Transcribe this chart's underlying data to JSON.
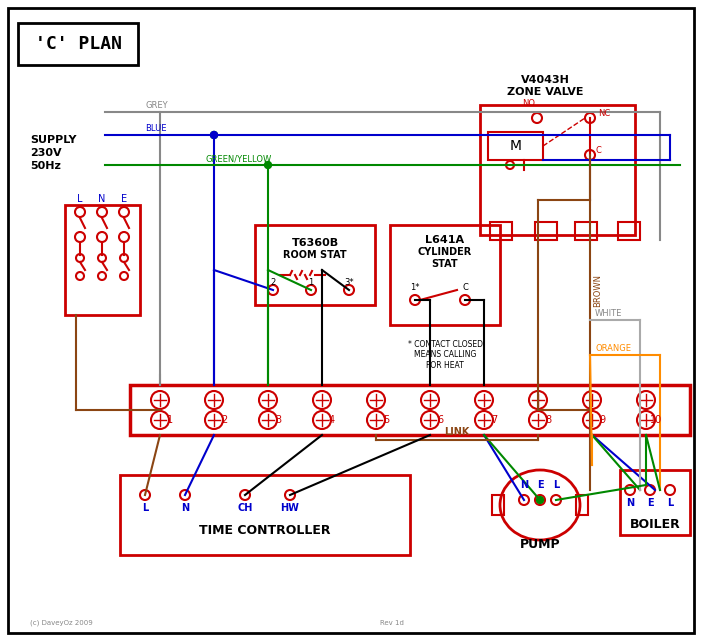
{
  "title": "'C' PLAN",
  "bg_color": "#ffffff",
  "border_color": "#000000",
  "red": "#cc0000",
  "blue": "#0000cc",
  "green": "#008800",
  "brown": "#8B4513",
  "grey": "#888888",
  "orange": "#FF8C00",
  "black": "#000000",
  "wire_labels": {
    "grey": "GREY",
    "blue": "BLUE",
    "green_yellow": "GREEN/YELLOW",
    "brown": "BROWN",
    "white": "WHITE",
    "orange": "ORANGE"
  },
  "terminal_numbers": [
    1,
    2,
    3,
    4,
    5,
    6,
    7,
    8,
    9,
    10
  ],
  "supply_text": [
    "SUPPLY",
    "230V",
    "50Hz"
  ],
  "supply_labels": [
    "L",
    "N",
    "E"
  ],
  "room_stat_title": "T6360B",
  "room_stat_sub": "ROOM STAT",
  "cyl_stat_title": "L641A",
  "cyl_stat_sub1": "CYLINDER",
  "cyl_stat_sub2": "STAT",
  "zone_valve_title": "V4043H",
  "zone_valve_sub": "ZONE VALVE",
  "zone_valve_labels": [
    "NO",
    "NC",
    "C",
    "M"
  ],
  "time_controller_label": "TIME CONTROLLER",
  "time_controller_terminals": [
    "L",
    "N",
    "CH",
    "HW"
  ],
  "pump_label": "PUMP",
  "pump_terminals": [
    "N",
    "E",
    "L"
  ],
  "boiler_label": "BOILER",
  "boiler_terminals": [
    "N",
    "E",
    "L"
  ],
  "link_label": "LINK",
  "note_text": "* CONTACT CLOSED\nMEANS CALLING\nFOR HEAT",
  "copyright": "(c) DaveyOz 2009",
  "revision": "Rev 1d"
}
